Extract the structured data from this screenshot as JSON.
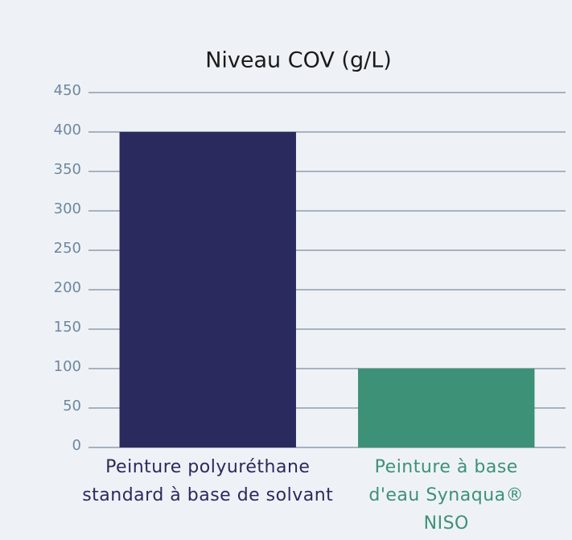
{
  "chart_data": {
    "type": "bar",
    "title": "Niveau COV (g/L)",
    "categories": [
      "Peinture polyuréthane standard à base de solvant",
      "Peinture à base d'eau Synaqua® NISO"
    ],
    "values": [
      400,
      100
    ],
    "colors": [
      "#2a2a5e",
      "#3d9176"
    ],
    "ylim": [
      0,
      450
    ],
    "yticks": [
      0,
      50,
      100,
      150,
      200,
      250,
      300,
      350,
      400,
      450
    ],
    "grid": true
  }
}
